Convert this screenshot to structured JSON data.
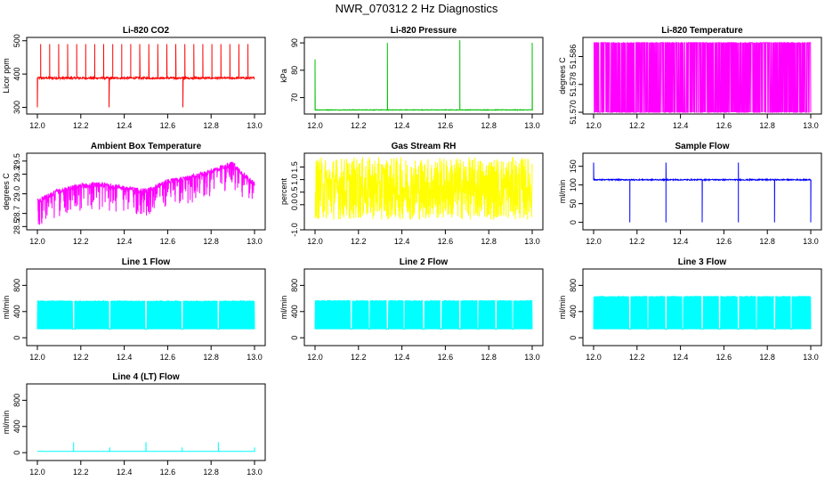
{
  "title": "NWR_070312  2 Hz Diagnostics",
  "chart_data": [
    {
      "id": "co2",
      "type": "line",
      "title": "Li-820 CO2",
      "ylabel": "Licor ppm",
      "color": "#ff0000",
      "xlim": [
        12.0,
        13.0
      ],
      "ylim": [
        280,
        510
      ],
      "x_ticks": [
        "12.0",
        "12.2",
        "12.4",
        "12.6",
        "12.8",
        "13.0"
      ],
      "y_ticks": [
        {
          "v": 300,
          "label": "300"
        },
        {
          "v": 400,
          "label": "400"
        },
        {
          "v": 500,
          "label": "500"
        }
      ],
      "baseline": 388,
      "noise": 6,
      "spike_every": 0.0415,
      "spike_value": 490,
      "dip_value": 300
    },
    {
      "id": "pressure",
      "type": "line",
      "title": "Li-820 Pressure",
      "ylabel": "kPa",
      "color": "#00c000",
      "xlim": [
        12.0,
        13.0
      ],
      "ylim": [
        64,
        92
      ],
      "x_ticks": [
        "12.0",
        "12.2",
        "12.4",
        "12.6",
        "12.8",
        "13.0"
      ],
      "y_ticks": [
        {
          "v": 70,
          "label": "70"
        },
        {
          "v": 80,
          "label": "80"
        },
        {
          "v": 90,
          "label": "90"
        }
      ],
      "baseline": 65.5,
      "noise": 0.2,
      "spikes": [
        {
          "x": 12.0,
          "v": 84
        },
        {
          "x": 12.333,
          "v": 90
        },
        {
          "x": 12.667,
          "v": 91
        },
        {
          "x": 13.0,
          "v": 90
        }
      ]
    },
    {
      "id": "temperature",
      "type": "line",
      "title": "Li-820 Temperature",
      "ylabel": "degrees C",
      "color": "#ff00ff",
      "xlim": [
        12.0,
        13.0
      ],
      "ylim": [
        51.5695,
        51.5915
      ],
      "x_ticks": [
        "12.0",
        "12.2",
        "12.4",
        "12.6",
        "12.8",
        "13.0"
      ],
      "y_ticks": [
        {
          "v": 51.57,
          "label": "51.570"
        },
        {
          "v": 51.578,
          "label": "51.578"
        },
        {
          "v": 51.586,
          "label": "51.586"
        }
      ],
      "low": 51.57,
      "high": 51.59
    },
    {
      "id": "ambient",
      "type": "line",
      "title": "Ambient Box Temperature",
      "ylabel": "degrees C",
      "color": "#ff00ff",
      "xlim": [
        12.0,
        13.0
      ],
      "ylim": [
        28.45,
        29.62
      ],
      "x_ticks": [
        "12.0",
        "12.2",
        "12.4",
        "12.6",
        "12.8",
        "13.0"
      ],
      "y_ticks": [
        {
          "v": 28.5,
          "label": "28.5"
        },
        {
          "v": 28.7,
          "label": "28.7"
        },
        {
          "v": 29.0,
          "label": "29.0"
        },
        {
          "v": 29.3,
          "label": "29.3"
        },
        {
          "v": 29.5,
          "label": "29.5"
        }
      ],
      "trend": [
        [
          12.0,
          28.85
        ],
        [
          12.1,
          29.0
        ],
        [
          12.2,
          29.08
        ],
        [
          12.3,
          29.1
        ],
        [
          12.4,
          29.05
        ],
        [
          12.5,
          29.0
        ],
        [
          12.6,
          29.15
        ],
        [
          12.7,
          29.2
        ],
        [
          12.8,
          29.3
        ],
        [
          12.9,
          29.42
        ],
        [
          13.0,
          29.1
        ]
      ]
    },
    {
      "id": "rh",
      "type": "line",
      "title": "Gas Stream RH",
      "ylabel": "percent",
      "color": "#ffff00",
      "xlim": [
        12.0,
        13.0
      ],
      "ylim": [
        -1.0,
        2.05
      ],
      "x_ticks": [
        "12.0",
        "12.2",
        "12.4",
        "12.6",
        "12.8",
        "13.0"
      ],
      "y_ticks": [
        {
          "v": -1.0,
          "label": "-1.0"
        },
        {
          "v": 0.0,
          "label": "0.0"
        },
        {
          "v": 0.5,
          "label": "0.5"
        },
        {
          "v": 1.0,
          "label": "1.0"
        },
        {
          "v": 1.5,
          "label": "1.5"
        }
      ],
      "low": -0.6,
      "high": 1.9
    },
    {
      "id": "sample",
      "type": "line",
      "title": "Sample Flow",
      "ylabel": "ml/min",
      "color": "#0000ff",
      "xlim": [
        12.0,
        13.0
      ],
      "ylim": [
        -20,
        185
      ],
      "x_ticks": [
        "12.0",
        "12.2",
        "12.4",
        "12.6",
        "12.8",
        "13.0"
      ],
      "y_ticks": [
        {
          "v": 0,
          "label": "0"
        },
        {
          "v": 50,
          "label": "50"
        },
        {
          "v": 100,
          "label": "100"
        },
        {
          "v": 150,
          "label": "150"
        }
      ],
      "baseline": 114,
      "dips": [
        12.167,
        12.333,
        12.5,
        12.667,
        12.833,
        13.0
      ],
      "peaks": [
        12.0,
        12.333,
        12.667
      ]
    },
    {
      "id": "line1",
      "type": "line",
      "title": "Line 1 Flow",
      "ylabel": "ml/min",
      "color": "#00ffff",
      "xlim": [
        12.0,
        13.0
      ],
      "ylim": [
        -120,
        1050
      ],
      "x_ticks": [
        "12.0",
        "12.2",
        "12.4",
        "12.6",
        "12.8",
        "13.0"
      ],
      "y_ticks": [
        {
          "v": 0,
          "label": "0"
        },
        {
          "v": 400,
          "label": "400"
        },
        {
          "v": 800,
          "label": "800"
        }
      ],
      "low": 130,
      "high": 570,
      "gaps": [
        12.167,
        12.333,
        12.5,
        12.667,
        12.833
      ]
    },
    {
      "id": "line2",
      "type": "line",
      "title": "Line 2 Flow",
      "ylabel": "ml/min",
      "color": "#00ffff",
      "xlim": [
        12.0,
        13.0
      ],
      "ylim": [
        -120,
        1050
      ],
      "x_ticks": [
        "12.0",
        "12.2",
        "12.4",
        "12.6",
        "12.8",
        "13.0"
      ],
      "y_ticks": [
        {
          "v": 0,
          "label": "0"
        },
        {
          "v": 400,
          "label": "400"
        },
        {
          "v": 800,
          "label": "800"
        }
      ],
      "low": 130,
      "high": 575,
      "gaps": [
        12.167,
        12.25,
        12.333,
        12.41,
        12.5,
        12.58,
        12.667,
        12.75,
        12.833,
        12.91
      ]
    },
    {
      "id": "line3",
      "type": "line",
      "title": "Line 3 Flow",
      "ylabel": "ml/min",
      "color": "#00ffff",
      "xlim": [
        12.0,
        13.0
      ],
      "ylim": [
        -120,
        1050
      ],
      "x_ticks": [
        "12.0",
        "12.2",
        "12.4",
        "12.6",
        "12.8",
        "13.0"
      ],
      "y_ticks": [
        {
          "v": 0,
          "label": "0"
        },
        {
          "v": 400,
          "label": "400"
        },
        {
          "v": 800,
          "label": "800"
        }
      ],
      "low": 130,
      "high": 640,
      "gaps": [
        12.167,
        12.25,
        12.333,
        12.41,
        12.5,
        12.58,
        12.667,
        12.75,
        12.833,
        12.91
      ]
    },
    {
      "id": "line4",
      "type": "line",
      "title": "Line 4 (LT) Flow",
      "ylabel": "ml/min",
      "color": "#00ffff",
      "xlim": [
        12.0,
        13.0
      ],
      "ylim": [
        -120,
        1050
      ],
      "x_ticks": [
        "12.0",
        "12.2",
        "12.4",
        "12.6",
        "12.8",
        "13.0"
      ],
      "y_ticks": [
        {
          "v": 0,
          "label": "0"
        },
        {
          "v": 400,
          "label": "400"
        },
        {
          "v": 800,
          "label": "800"
        }
      ],
      "baseline": 20,
      "spikes": [
        {
          "x": 12.167,
          "v": 160
        },
        {
          "x": 12.333,
          "v": 80
        },
        {
          "x": 12.5,
          "v": 160
        },
        {
          "x": 12.667,
          "v": 80
        },
        {
          "x": 12.833,
          "v": 160
        },
        {
          "x": 13.0,
          "v": 80
        }
      ]
    }
  ]
}
